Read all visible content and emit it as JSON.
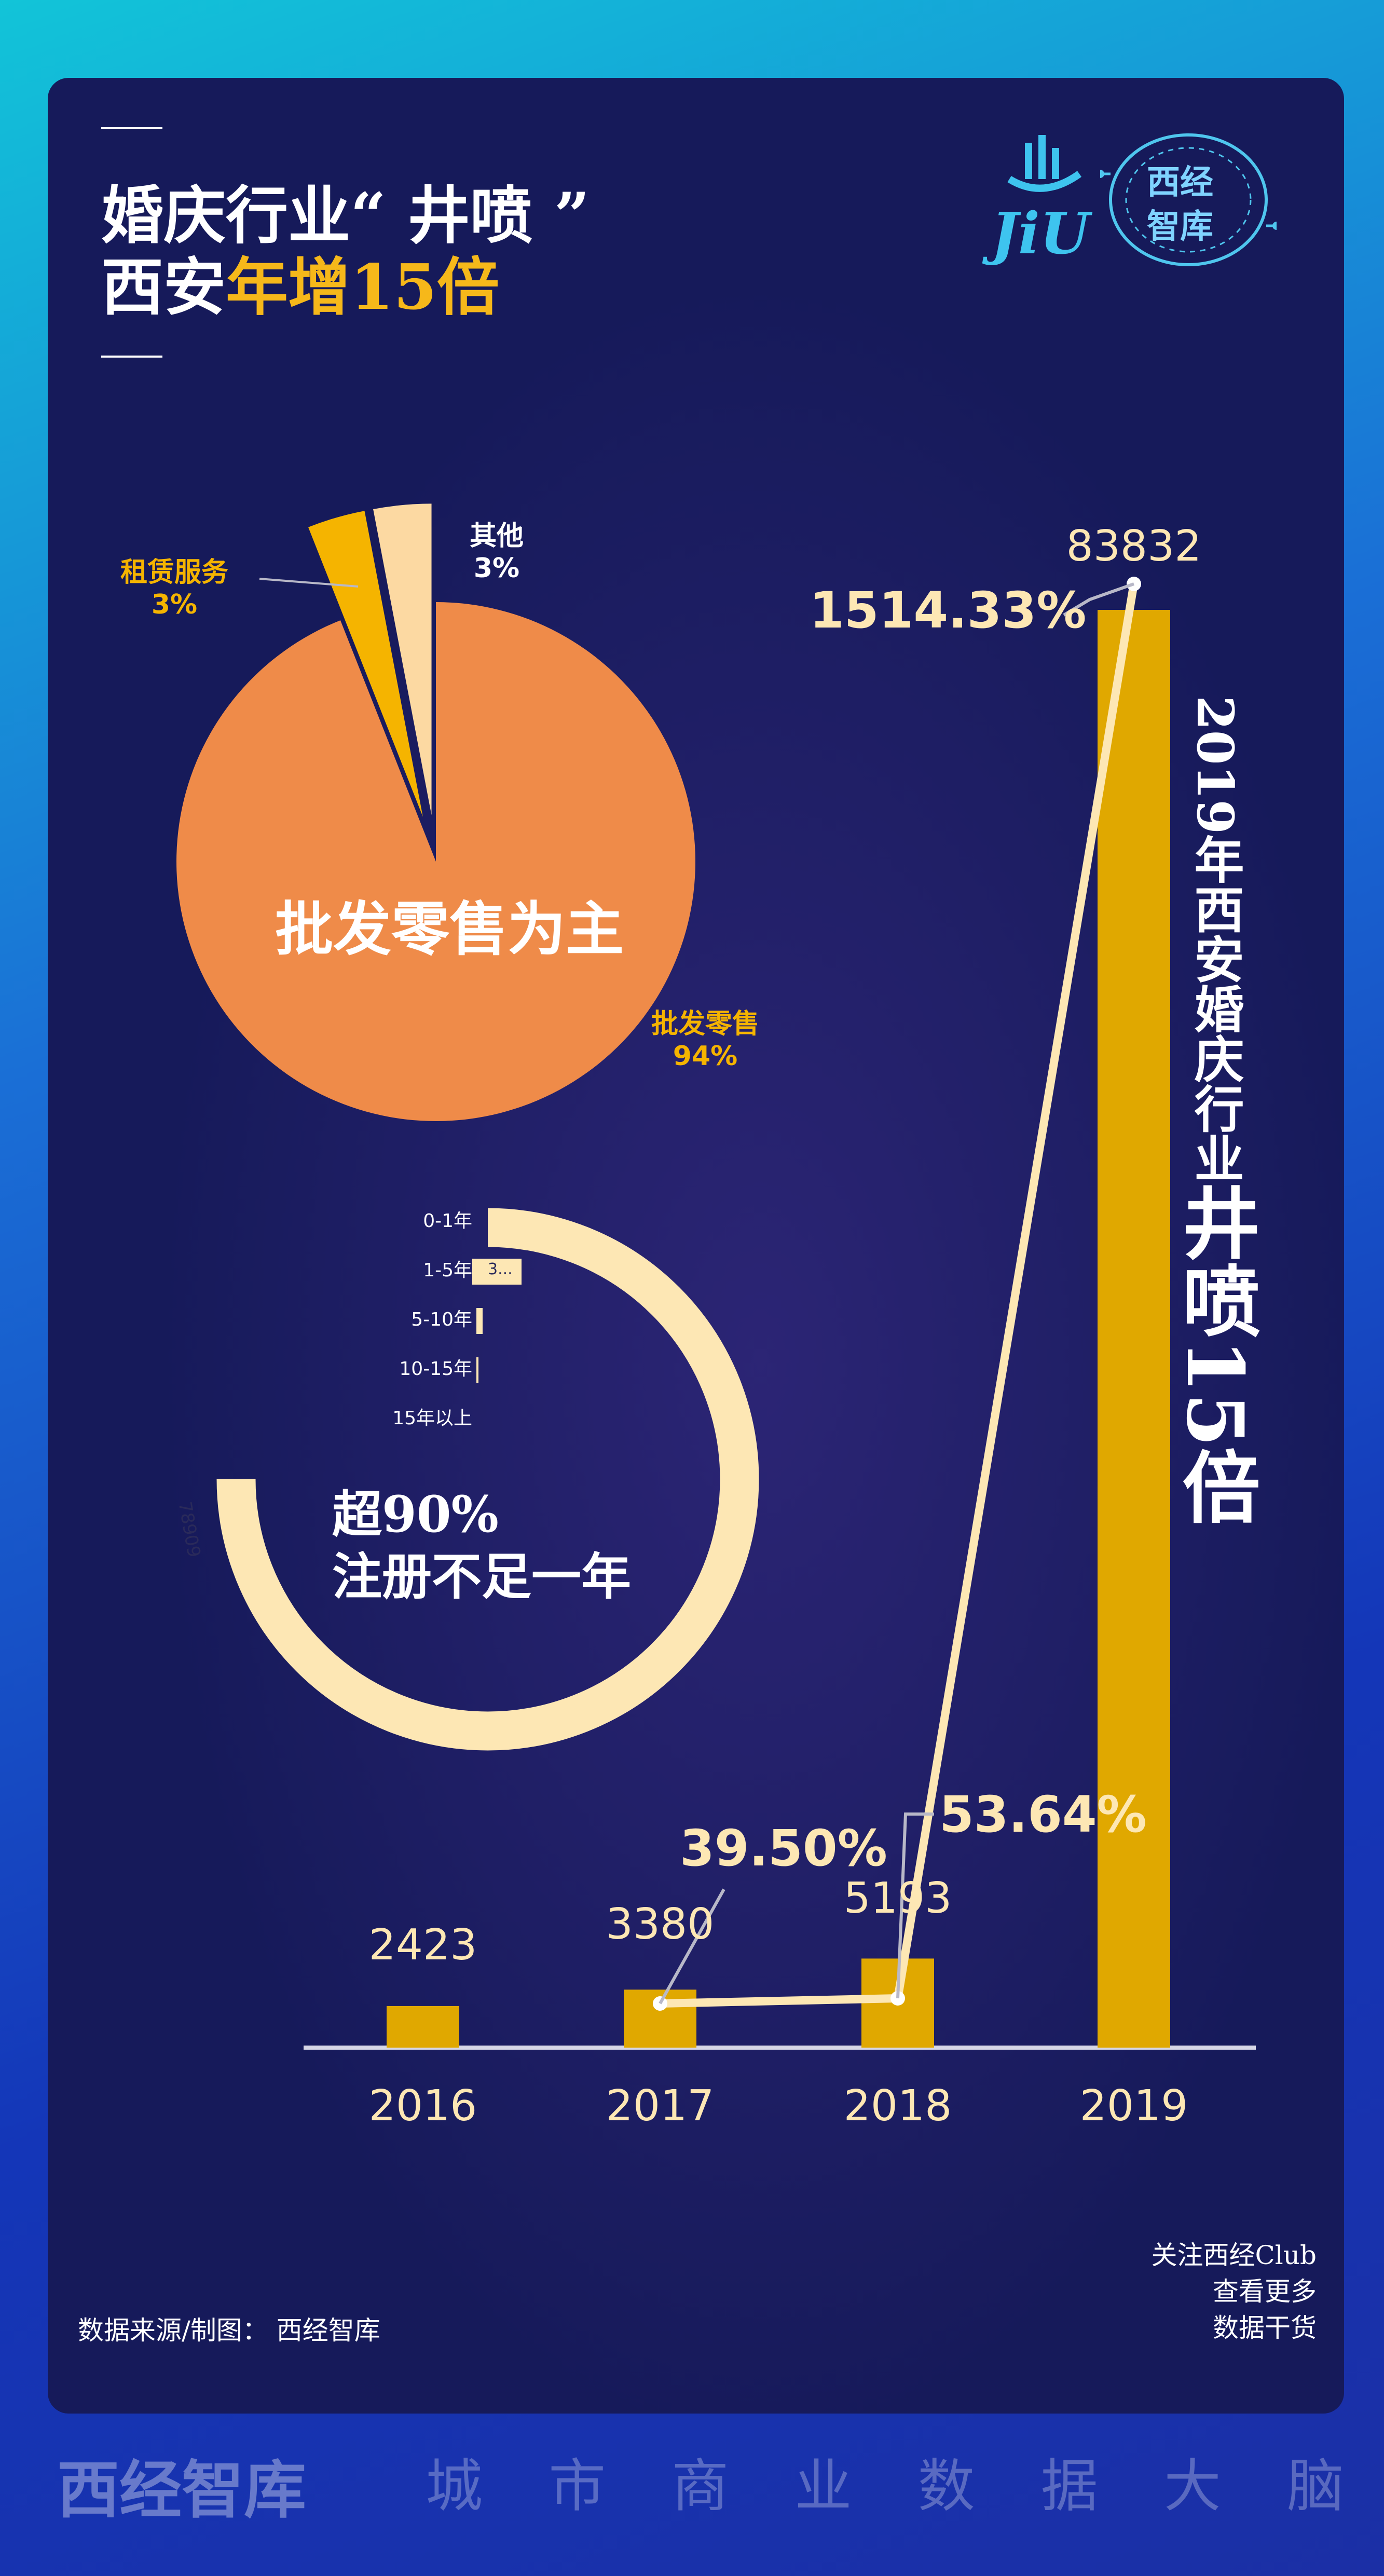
{
  "header": {
    "title_line1": "婚庆行业“ 井喷 ”",
    "title_line2_a": "西安",
    "title_line2_b": "年增15倍"
  },
  "logo": {
    "mark_text": "JiU",
    "seal_text_1": "西经",
    "seal_text_2": "智库"
  },
  "pie": {
    "center_label": "批发零售为主",
    "slices": [
      {
        "label": "批发零售",
        "value_label": "94%",
        "value": 94,
        "color": "#ef8b49"
      },
      {
        "label": "租赁服务",
        "value_label": "3%",
        "value": 3,
        "color": "#f5b400"
      },
      {
        "label": "其他",
        "value_label": "3%",
        "value": 3,
        "color": "#fcd9a2"
      }
    ]
  },
  "ring": {
    "categories": [
      "0-1年",
      "1-5年",
      "5-10年",
      "10-15年",
      "15年以上"
    ],
    "value_0_1": "78909",
    "value_1_5": "3...",
    "caption_line1": "超90%",
    "caption_line2": "注册不足一年"
  },
  "chart_data": {
    "type": "bar",
    "categories": [
      "2016",
      "2017",
      "2018",
      "2019"
    ],
    "values": [
      2423,
      3380,
      5193,
      83832
    ],
    "value_labels": [
      "2423",
      "3380",
      "5193",
      "83832"
    ],
    "growth_labels": [
      "39.50%",
      "53.64%",
      "1514.33%"
    ],
    "bar_color": "#e0a800",
    "line_color": "#fde7b4"
  },
  "vertical_caption": {
    "small": "2019年西安婚庆行业",
    "large": "井喷15倍"
  },
  "footer": {
    "follow_line1": "关注西经Club",
    "follow_line2": "查看更多",
    "follow_line3": "数据干货",
    "source": "数据来源/制图：   西经智库",
    "brand": "西经智库",
    "tagline": [
      "城",
      "市",
      "商",
      "业",
      "数",
      "据",
      "大",
      "脑"
    ]
  }
}
